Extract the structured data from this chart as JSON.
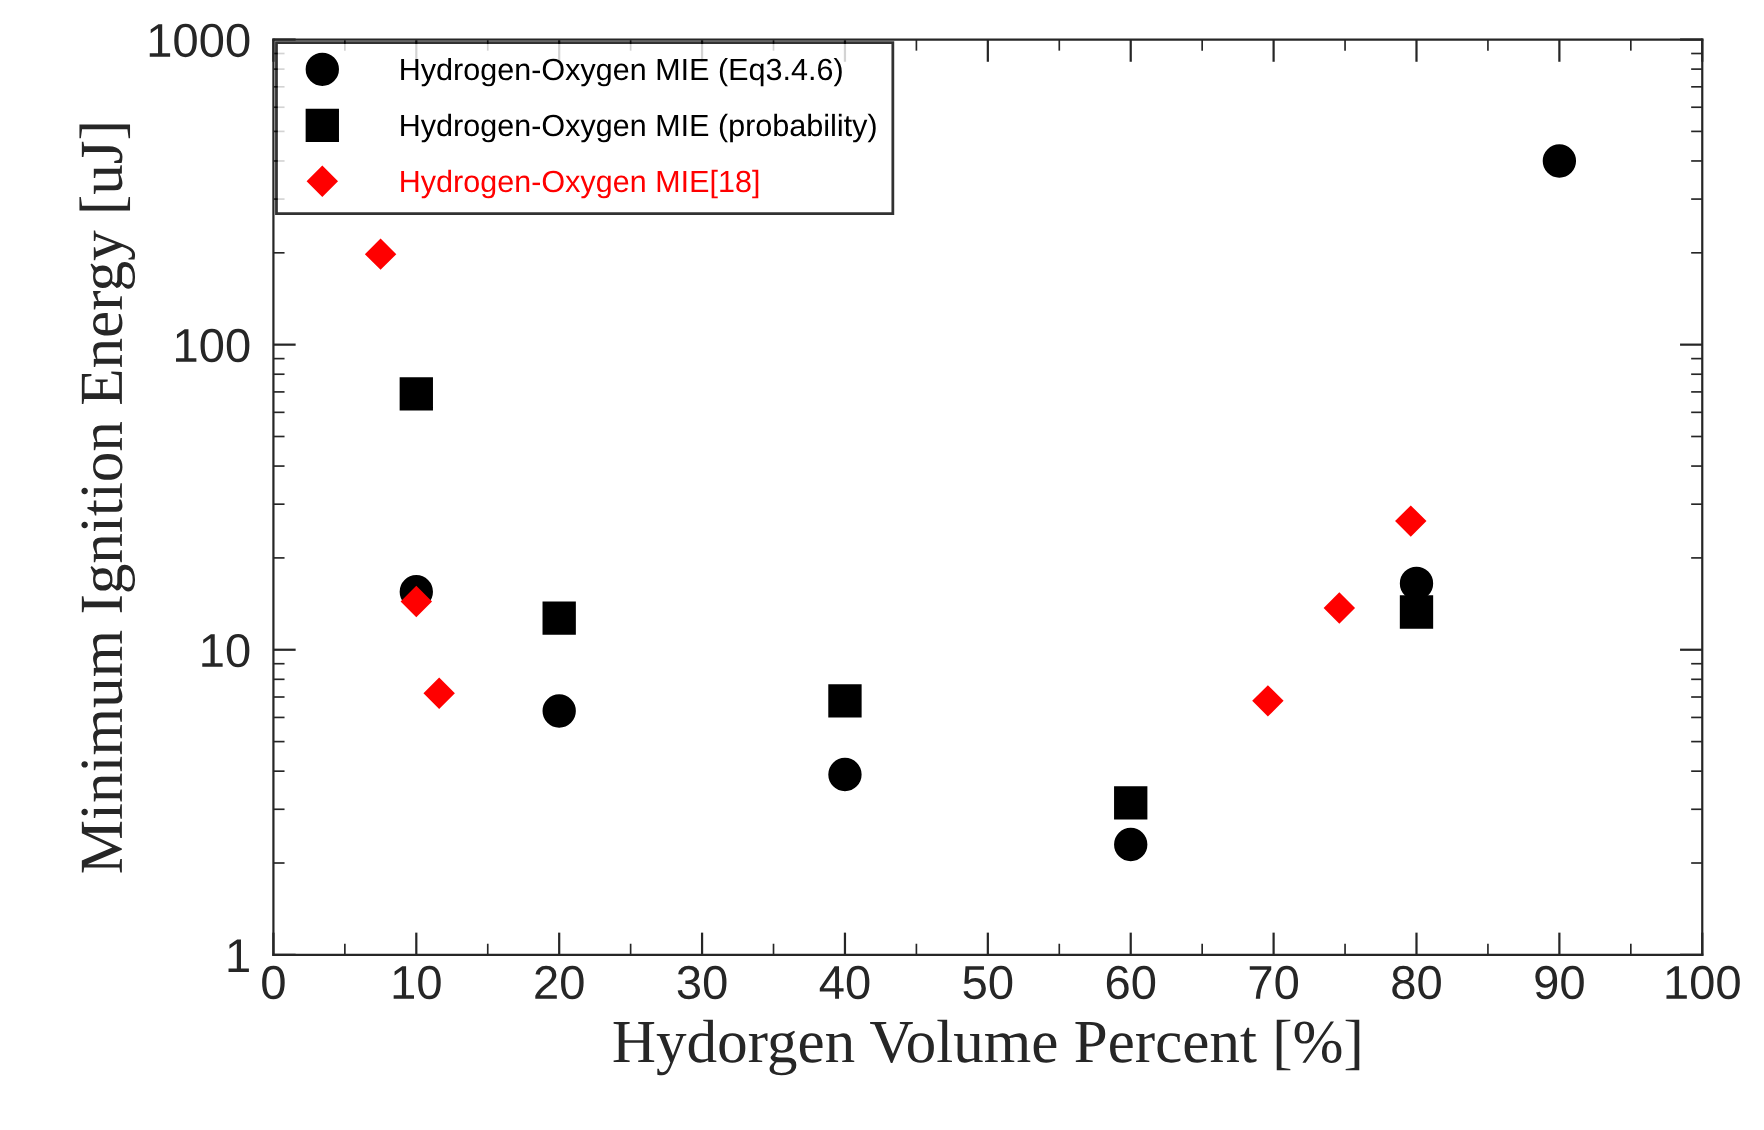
{
  "chart_data": {
    "type": "scatter",
    "xlabel": "Hydorgen Volume Percent [%]",
    "ylabel": "Minimum Ignition Energy [uJ]",
    "log": "y",
    "xlim": [
      0,
      100
    ],
    "xticks": [
      0,
      10,
      20,
      30,
      40,
      50,
      60,
      70,
      80,
      90,
      100
    ],
    "ylim": [
      1,
      1000
    ],
    "yticks": [
      1,
      10,
      100,
      1000
    ],
    "legend": "top left",
    "grid": false,
    "series": [
      {
        "name": "Hydrogen-Oxygen MIE (Eq3.4.6)",
        "color": "#000000",
        "marker": "circle",
        "x": [
          10,
          20,
          40,
          60,
          80,
          90
        ],
        "values": [
          15.5,
          6.3,
          3.9,
          2.3,
          16.5,
          400
        ]
      },
      {
        "name": "Hydrogen-Oxygen MIE (probability)",
        "color": "#000000",
        "marker": "square",
        "x": [
          10,
          20,
          40,
          60,
          80
        ],
        "values": [
          69,
          12.7,
          6.8,
          3.15,
          13.3
        ]
      },
      {
        "name": "Hydrogen-Oxygen MIE[18]",
        "color": "#ff0000",
        "marker": "diamond",
        "x": [
          7.5,
          10,
          11.6,
          69.6,
          74.6,
          79.6
        ],
        "values": [
          198,
          14.4,
          7.2,
          6.8,
          13.7,
          26.4
        ]
      }
    ]
  }
}
